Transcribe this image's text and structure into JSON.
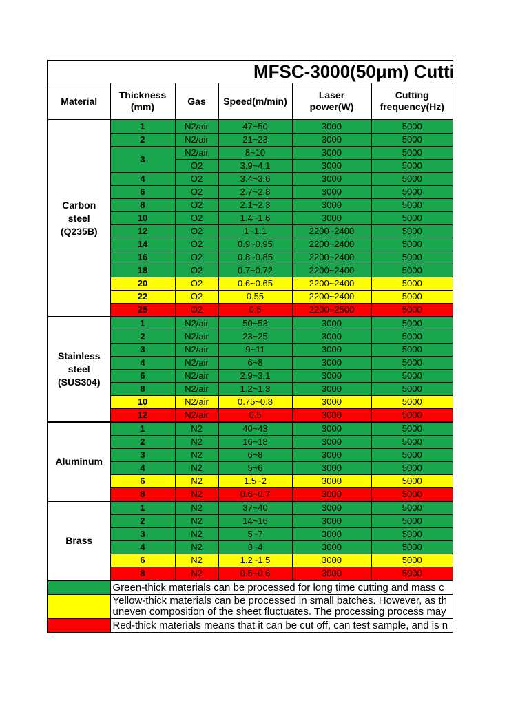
{
  "colors": {
    "green": "#1aa64d",
    "yellow": "#ffff00",
    "red": "#fe0000",
    "border": "#000000",
    "cell_bg": "#ffffff"
  },
  "title": {
    "text": "MFSC-3000(50μm) Cutti"
  },
  "columns": [
    "Material",
    "Thickness\n(mm)",
    "Gas",
    "Speed(m/min)",
    "Laser\npower(W)",
    "Cutting\nfrequency(Hz)"
  ],
  "table": {
    "sections": [
      {
        "material": "Carbon\nsteel\n(Q235B)",
        "rows": [
          {
            "thickness": "1",
            "gas": "N2/air",
            "speed": "47~50",
            "power": "3000",
            "freq": "5000",
            "status": "green"
          },
          {
            "thickness": "2",
            "gas": "N2/air",
            "speed": "21~23",
            "power": "3000",
            "freq": "5000",
            "status": "green"
          },
          {
            "thickness": "3",
            "tspan": 2,
            "gas": "N2/air",
            "speed": "8~10",
            "power": "3000",
            "freq": "5000",
            "status": "green"
          },
          {
            "gas": "O2",
            "speed": "3.9~4.1",
            "power": "3000",
            "freq": "5000",
            "status": "green"
          },
          {
            "thickness": "4",
            "gas": "O2",
            "speed": "3.4~3.6",
            "power": "3000",
            "freq": "5000",
            "status": "green"
          },
          {
            "thickness": "6",
            "gas": "O2",
            "speed": "2.7~2.8",
            "power": "3000",
            "freq": "5000",
            "status": "green"
          },
          {
            "thickness": "8",
            "gas": "O2",
            "speed": "2.1~2.3",
            "power": "3000",
            "freq": "5000",
            "status": "green"
          },
          {
            "thickness": "10",
            "gas": "O2",
            "speed": "1.4~1.6",
            "power": "3000",
            "freq": "5000",
            "status": "green"
          },
          {
            "thickness": "12",
            "gas": "O2",
            "speed": "1~1.1",
            "power": "2200~2400",
            "freq": "5000",
            "status": "green"
          },
          {
            "thickness": "14",
            "gas": "O2",
            "speed": "0.9~0.95",
            "power": "2200~2400",
            "freq": "5000",
            "status": "green"
          },
          {
            "thickness": "16",
            "gas": "O2",
            "speed": "0.8~0.85",
            "power": "2200~2400",
            "freq": "5000",
            "status": "green"
          },
          {
            "thickness": "18",
            "gas": "O2",
            "speed": "0.7~0.72",
            "power": "2200~2400",
            "freq": "5000",
            "status": "green"
          },
          {
            "thickness": "20",
            "gas": "O2",
            "speed": "0.6~0.65",
            "power": "2200~2400",
            "freq": "5000",
            "status": "yellow"
          },
          {
            "thickness": "22",
            "gas": "O2",
            "speed": "0.55",
            "power": "2200~2400",
            "freq": "5000",
            "status": "yellow"
          },
          {
            "thickness": "25",
            "gas": "O2",
            "speed": "0.5",
            "power": "2200~2500",
            "freq": "5000",
            "status": "red"
          }
        ]
      },
      {
        "material": "Stainless\nsteel\n(SUS304)",
        "rows": [
          {
            "thickness": "1",
            "gas": "N2/air",
            "speed": "50~53",
            "power": "3000",
            "freq": "5000",
            "status": "green"
          },
          {
            "thickness": "2",
            "gas": "N2/air",
            "speed": "23~25",
            "power": "3000",
            "freq": "5000",
            "status": "green"
          },
          {
            "thickness": "3",
            "gas": "N2/air",
            "speed": "9~11",
            "power": "3000",
            "freq": "5000",
            "status": "green"
          },
          {
            "thickness": "4",
            "gas": "N2/air",
            "speed": "6~8",
            "power": "3000",
            "freq": "5000",
            "status": "green"
          },
          {
            "thickness": "6",
            "gas": "N2/air",
            "speed": "2.9~3.1",
            "power": "3000",
            "freq": "5000",
            "status": "green"
          },
          {
            "thickness": "8",
            "gas": "N2/air",
            "speed": "1.2~1.3",
            "power": "3000",
            "freq": "5000",
            "status": "green"
          },
          {
            "thickness": "10",
            "gas": "N2/air",
            "speed": "0.75~0.8",
            "power": "3000",
            "freq": "5000",
            "status": "yellow"
          },
          {
            "thickness": "12",
            "gas": "N2/air",
            "speed": "0.5",
            "power": "3000",
            "freq": "5000",
            "status": "red"
          }
        ]
      },
      {
        "material": "Aluminum",
        "rows": [
          {
            "thickness": "1",
            "gas": "N2",
            "speed": "40~43",
            "power": "3000",
            "freq": "5000",
            "status": "green"
          },
          {
            "thickness": "2",
            "gas": "N2",
            "speed": "16~18",
            "power": "3000",
            "freq": "5000",
            "status": "green"
          },
          {
            "thickness": "3",
            "gas": "N2",
            "speed": "6~8",
            "power": "3000",
            "freq": "5000",
            "status": "green"
          },
          {
            "thickness": "4",
            "gas": "N2",
            "speed": "5~6",
            "power": "3000",
            "freq": "5000",
            "status": "green"
          },
          {
            "thickness": "6",
            "gas": "N2",
            "speed": "1.5~2",
            "power": "3000",
            "freq": "5000",
            "status": "yellow"
          },
          {
            "thickness": "8",
            "gas": "N2",
            "speed": "0.6~0.7",
            "power": "3000",
            "freq": "5000",
            "status": "red"
          }
        ]
      },
      {
        "material": "Brass",
        "rows": [
          {
            "thickness": "1",
            "gas": "N2",
            "speed": "37~40",
            "power": "3000",
            "freq": "5000",
            "status": "green"
          },
          {
            "thickness": "2",
            "gas": "N2",
            "speed": "14~16",
            "power": "3000",
            "freq": "5000",
            "status": "green"
          },
          {
            "thickness": "3",
            "gas": "N2",
            "speed": "5~7",
            "power": "3000",
            "freq": "5000",
            "status": "green"
          },
          {
            "thickness": "4",
            "gas": "N2",
            "speed": "3~4",
            "power": "3000",
            "freq": "5000",
            "status": "green"
          },
          {
            "thickness": "6",
            "gas": "N2",
            "speed": "1.2~1.5",
            "power": "3000",
            "freq": "5000",
            "status": "yellow"
          },
          {
            "thickness": "8",
            "gas": "N2",
            "speed": "0.5~0.6",
            "power": "3000",
            "freq": "5000",
            "status": "red"
          }
        ]
      }
    ]
  },
  "legend": {
    "items": [
      {
        "color": "green",
        "lines": [
          "Green-thick materials can be processed for long time cutting and mass c"
        ]
      },
      {
        "color": "yellow",
        "lines": [
          "Yellow-thick materials can be processed in small batches. However, as th",
          "uneven composition of the sheet fluctuates. The processing process may"
        ]
      },
      {
        "color": "red",
        "lines": [
          "Red-thick materials means that it can be cut off, can test sample, and is n"
        ]
      }
    ]
  }
}
